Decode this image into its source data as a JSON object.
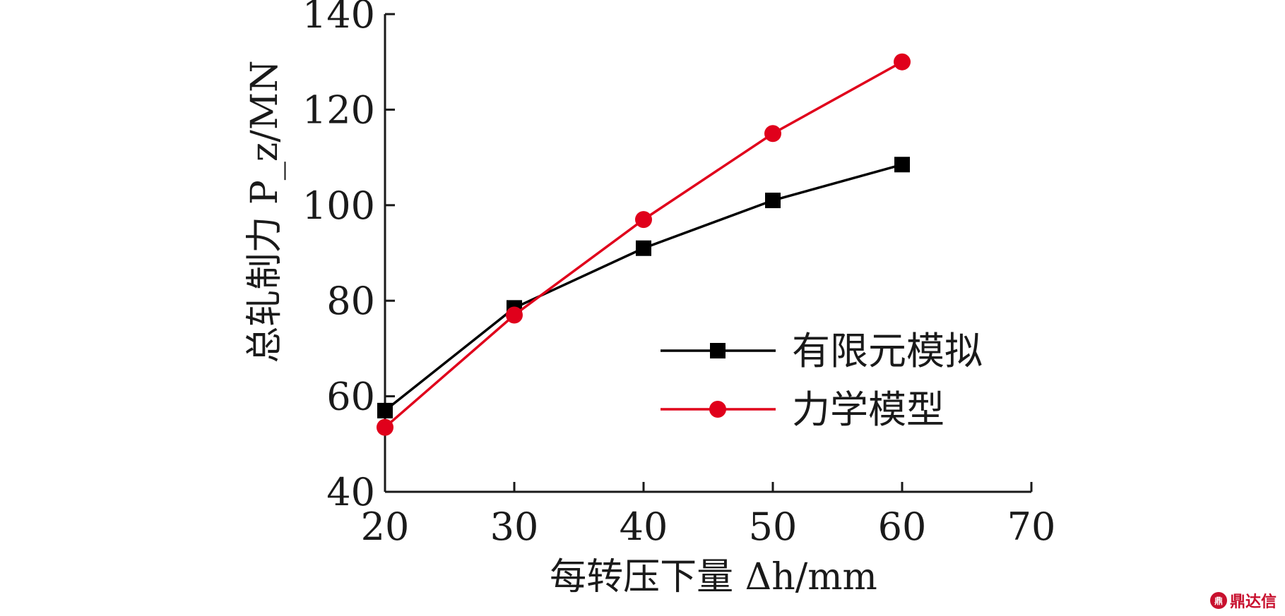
{
  "colors": {
    "series1": "#000000",
    "series2": "#e0001b",
    "axis": "#1a1a1a"
  },
  "chart_data": {
    "type": "line",
    "xlabel": "每转压下量 Δh/mm",
    "ylabel": "总轧制力 P_z/MN",
    "xlim": [
      20,
      70
    ],
    "ylim": [
      40,
      140
    ],
    "xticks": [
      20,
      30,
      40,
      50,
      60,
      70
    ],
    "yticks": [
      40,
      60,
      80,
      100,
      120,
      140
    ],
    "grid": false,
    "legend_position": "right",
    "series": [
      {
        "name": "有限元模拟",
        "marker": "square",
        "color": "#000000",
        "x": [
          20,
          30,
          40,
          50,
          60
        ],
        "y": [
          57,
          78.5,
          91,
          101,
          108.5
        ]
      },
      {
        "name": "力学模型",
        "marker": "circle",
        "color": "#e0001b",
        "x": [
          20,
          30,
          40,
          50,
          60
        ],
        "y": [
          53.5,
          77,
          97,
          115,
          130
        ]
      }
    ]
  },
  "watermark": {
    "text": "鼎达信",
    "icon": "seal-logo-icon"
  }
}
